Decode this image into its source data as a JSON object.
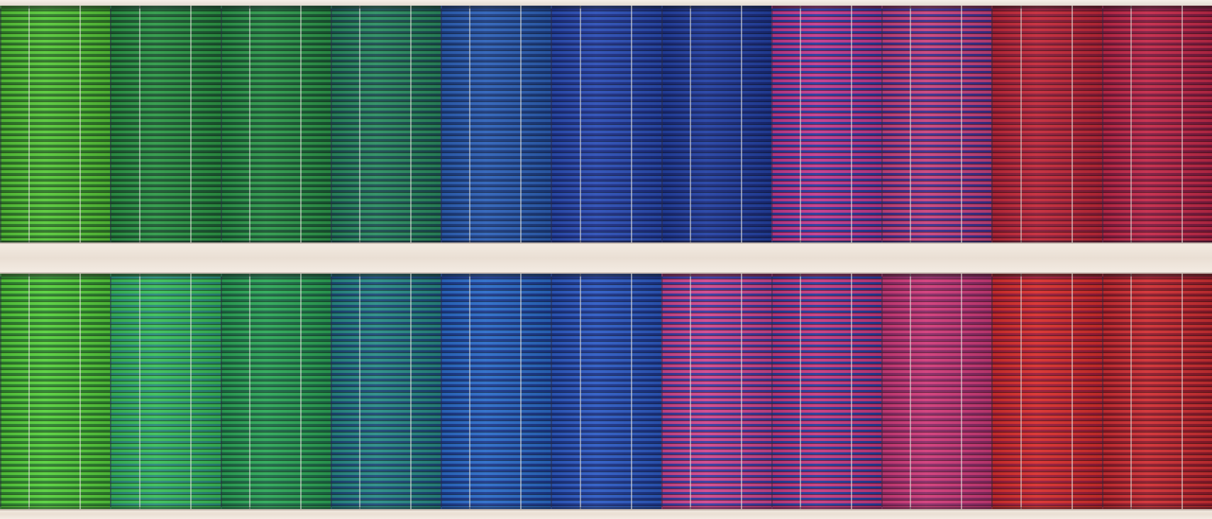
{
  "scene": {
    "rows": [
      {
        "blinds": [
          {
            "c1": "#58c83a",
            "c2": "#2f7a2a"
          },
          {
            "c1": "#2f9a48",
            "c2": "#1c5a34"
          },
          {
            "c1": "#2f9a4c",
            "c2": "#1a5a36"
          },
          {
            "c1": "#2c8e62",
            "c2": "#1b4f52"
          },
          {
            "c1": "#2e62b8",
            "c2": "#1c3c80"
          },
          {
            "c1": "#2c4fb6",
            "c2": "#1d2f84"
          },
          {
            "c1": "#2442a4",
            "c2": "#1a2a78"
          },
          {
            "c1": "#c43c8e",
            "c2": "#2a3a9e"
          },
          {
            "c1": "#c8447e",
            "c2": "#3c2f8e"
          },
          {
            "c1": "#c42a3a",
            "c2": "#8a1c3a"
          },
          {
            "c1": "#c42a4a",
            "c2": "#7e1a40"
          }
        ]
      },
      {
        "blinds": [
          {
            "c1": "#58d03e",
            "c2": "#2e8230"
          },
          {
            "c1": "#3cbf5a",
            "c2": "#2a8a7a"
          },
          {
            "c1": "#2ea858",
            "c2": "#1d6a48"
          },
          {
            "c1": "#2a8c86",
            "c2": "#1c4a78"
          },
          {
            "c1": "#2c6cc8",
            "c2": "#1c3a8c"
          },
          {
            "c1": "#2e5cc4",
            "c2": "#1c3488"
          },
          {
            "c1": "#d0488e",
            "c2": "#3a3aa0"
          },
          {
            "c1": "#c83c80",
            "c2": "#283c9c"
          },
          {
            "c1": "#d03c7a",
            "c2": "#8a2a66"
          },
          {
            "c1": "#d8302e",
            "c2": "#9a1c3a"
          },
          {
            "c1": "#d03034",
            "c2": "#8e1a2c"
          }
        ]
      }
    ]
  }
}
